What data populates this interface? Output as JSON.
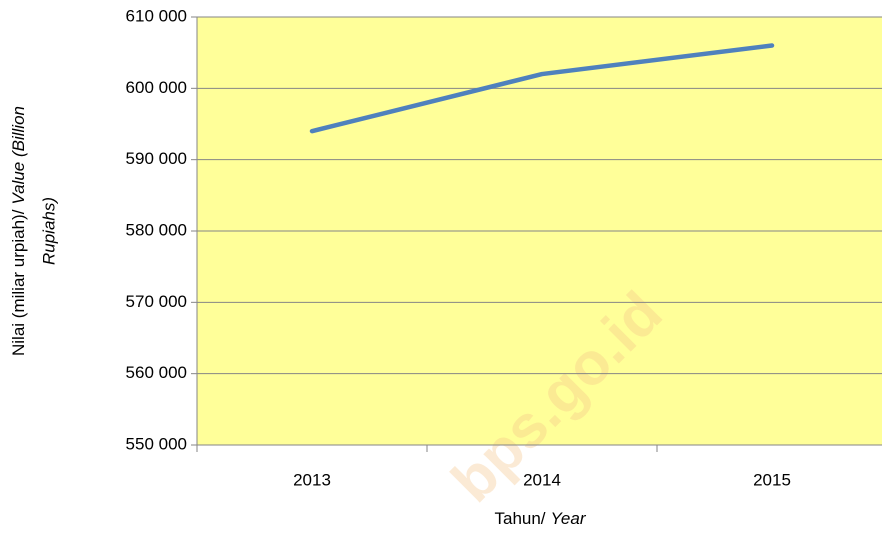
{
  "chart_data": {
    "type": "line",
    "categories": [
      "2013",
      "2014",
      "2015"
    ],
    "series": [
      {
        "name": "Nilai",
        "color": "#4f81bd",
        "values": [
          594000,
          602000,
          606000
        ]
      }
    ],
    "ylim": [
      550000,
      610000
    ],
    "yticks": [
      {
        "value": 550000,
        "label": "550 000"
      },
      {
        "value": 560000,
        "label": "560 000"
      },
      {
        "value": 570000,
        "label": "570 000"
      },
      {
        "value": 580000,
        "label": "580 000"
      },
      {
        "value": 590000,
        "label": "590 000"
      },
      {
        "value": 600000,
        "label": "600 000"
      },
      {
        "value": 610000,
        "label": "610 000"
      }
    ],
    "grid": true,
    "plot_background": "#ffff99",
    "xlabel": {
      "text": "Tahun/",
      "italic": "Year"
    },
    "ylabel": {
      "text": "Nilai (miliar urpiah)/",
      "italic": "Value (Billion",
      "italic_line2": "Rupiahs)"
    },
    "watermark": "bps.go.id"
  }
}
